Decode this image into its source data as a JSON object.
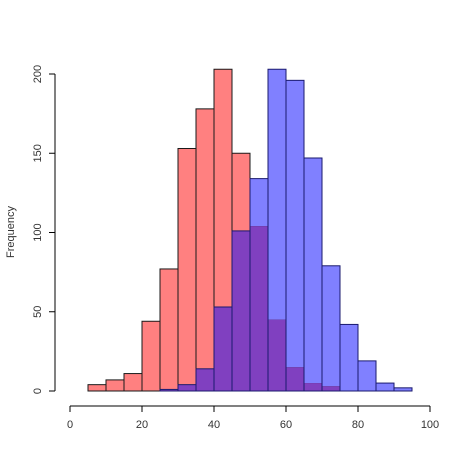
{
  "chart_data": {
    "type": "bar",
    "subtype": "overlapping-histogram",
    "title": "",
    "xlabel": "",
    "ylabel": "Frequency",
    "xlim": [
      0,
      100
    ],
    "ylim": [
      0,
      200
    ],
    "xticks": [
      0,
      20,
      40,
      60,
      80,
      100
    ],
    "yticks": [
      0,
      50,
      100,
      150,
      200
    ],
    "grid": false,
    "legend": "none",
    "bins": [
      5,
      10,
      15,
      20,
      25,
      30,
      35,
      40,
      45,
      50,
      55,
      60,
      65,
      70,
      75,
      80,
      85,
      90,
      95
    ],
    "bin_width": 5,
    "series": [
      {
        "color": "#ff8080",
        "overlap_color": "#8040c0",
        "values": [
          4,
          7,
          11,
          44,
          77,
          153,
          178,
          203,
          150,
          104,
          45,
          15,
          5,
          3,
          0,
          0,
          0,
          0,
          0
        ]
      },
      {
        "color": "#8080ff",
        "overlap_color": "#8040c0",
        "values": [
          0,
          0,
          0,
          0,
          1,
          4,
          14,
          53,
          101,
          134,
          203,
          196,
          147,
          79,
          42,
          19,
          5,
          2,
          0
        ]
      }
    ]
  }
}
